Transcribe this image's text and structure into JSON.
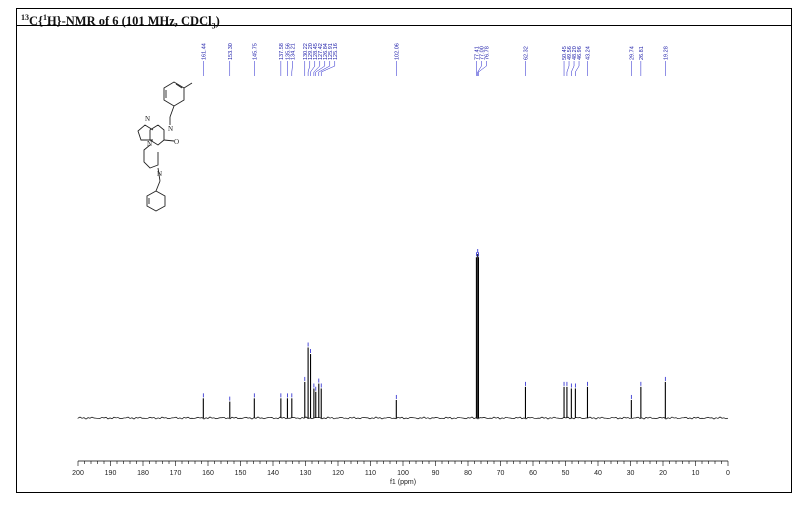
{
  "title": {
    "pre": "13",
    "mid1": "C{",
    "sup1": "1",
    "mid2": "H}-NMR of 6 (101 MHz, CDCl",
    "sub1": "3",
    "post": ")"
  },
  "structure": {
    "n1": "N",
    "n2": "N",
    "n3": "N",
    "n4": "N",
    "o": "O"
  },
  "chart_data": {
    "type": "line",
    "title": "13C{1H}-NMR of 6 (101 MHz, CDCl3)",
    "xlabel": "f1 (ppm)",
    "xlim": [
      200,
      0
    ],
    "xticks": [
      200,
      190,
      180,
      170,
      160,
      150,
      140,
      130,
      120,
      110,
      100,
      90,
      80,
      70,
      60,
      50,
      40,
      30,
      20,
      10,
      0
    ],
    "peak_labels": [
      "161.44",
      "153.30",
      "145.75",
      "137.58",
      "135.56",
      "134.21",
      "130.22",
      "129.20",
      "128.45",
      "127.42",
      "126.84",
      "125.91",
      "125.16",
      "102.06",
      "77.41",
      "77.00",
      "76.78",
      "62.32",
      "50.45",
      "49.56",
      "48.20",
      "46.96",
      "43.24",
      "29.74",
      "26.81",
      "19.28"
    ],
    "peaks": [
      {
        "x": 161.44,
        "y": 0.12
      },
      {
        "x": 153.3,
        "y": 0.1
      },
      {
        "x": 145.75,
        "y": 0.12
      },
      {
        "x": 137.58,
        "y": 0.12
      },
      {
        "x": 135.56,
        "y": 0.12
      },
      {
        "x": 134.21,
        "y": 0.12
      },
      {
        "x": 130.22,
        "y": 0.22
      },
      {
        "x": 129.2,
        "y": 0.43
      },
      {
        "x": 128.45,
        "y": 0.39
      },
      {
        "x": 127.42,
        "y": 0.18
      },
      {
        "x": 126.84,
        "y": 0.16
      },
      {
        "x": 125.91,
        "y": 0.21
      },
      {
        "x": 125.16,
        "y": 0.18
      },
      {
        "x": 102.06,
        "y": 0.11
      },
      {
        "x": 77.41,
        "y": 0.98
      },
      {
        "x": 77.0,
        "y": 1.0
      },
      {
        "x": 76.78,
        "y": 0.98
      },
      {
        "x": 62.32,
        "y": 0.19
      },
      {
        "x": 50.45,
        "y": 0.19
      },
      {
        "x": 49.56,
        "y": 0.19
      },
      {
        "x": 48.2,
        "y": 0.18
      },
      {
        "x": 46.96,
        "y": 0.18
      },
      {
        "x": 43.24,
        "y": 0.19
      },
      {
        "x": 29.74,
        "y": 0.11
      },
      {
        "x": 26.81,
        "y": 0.19
      },
      {
        "x": 19.28,
        "y": 0.22
      }
    ],
    "colors": {
      "spectrum": "#000000",
      "peak_marker": "#2222cc"
    }
  }
}
